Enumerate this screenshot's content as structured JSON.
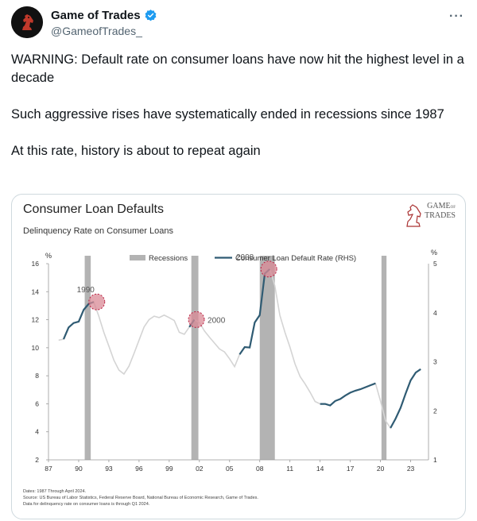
{
  "tweet": {
    "display_name": "Game of Trades",
    "handle": "@GameofTrades_",
    "more_icon": "more-horizontal-icon",
    "verified_icon": "verified-badge-icon",
    "paragraphs": [
      "WARNING: Default rate on consumer loans have now hit the highest level in a decade",
      "Such aggressive rises have systematically ended in recessions since 1987",
      "At this rate, history is about to repeat again"
    ]
  },
  "chart": {
    "brand_line1": "GAME",
    "brand_of": "OF",
    "brand_line2": "TRADES",
    "footnote_dates": "Dates: 1987 Through April 2024.",
    "footnote_source": "Source: US Bureau of Labor Statistics, Federal Reserve Board, National Bureau of Economic Research, Game of Trades.",
    "footnote_data": "Data for delinquency rate on consumer loans is through Q1 2024."
  },
  "chart_data": {
    "type": "line",
    "title": "Consumer Loan Defaults",
    "subtitle": "Delinquency Rate on Consumer Loans",
    "left_axis_unit": "%",
    "right_axis_unit": "%",
    "left_ylim": [
      2,
      16
    ],
    "right_ylim": [
      1,
      5
    ],
    "left_ticks": [
      2,
      4,
      6,
      8,
      10,
      12,
      14,
      16
    ],
    "right_ticks": [
      1,
      2,
      3,
      4,
      5
    ],
    "x_tick_labels": [
      "87",
      "90",
      "93",
      "96",
      "99",
      "02",
      "05",
      "08",
      "11",
      "14",
      "17",
      "20",
      "23"
    ],
    "x_tick_years": [
      1987,
      1990,
      1993,
      1996,
      1999,
      2002,
      2005,
      2008,
      2011,
      2014,
      2017,
      2020,
      2023
    ],
    "xlim": [
      1987,
      2024.3
    ],
    "legend": {
      "recessions_label": "Recessions",
      "series_label": "Consumer Loan Default Rate (RHS)"
    },
    "legend_placement": "top-center",
    "recessions": [
      [
        1990.6,
        1991.2
      ],
      [
        2001.2,
        2001.9
      ],
      [
        2008.0,
        2009.5
      ],
      [
        2020.1,
        2020.6
      ]
    ],
    "series": [
      {
        "name": "Consumer Loan Default Rate (RHS)",
        "axis": "right",
        "color": "#2f5b73",
        "points": [
          [
            1988.0,
            3.44
          ],
          [
            1988.5,
            3.46
          ],
          [
            1989.0,
            3.7
          ],
          [
            1989.5,
            3.79
          ],
          [
            1990.0,
            3.82
          ],
          [
            1990.5,
            4.06
          ],
          [
            1991.0,
            4.18
          ],
          [
            1991.5,
            4.22
          ],
          [
            1992.0,
            3.93
          ],
          [
            1992.5,
            3.6
          ],
          [
            1993.0,
            3.32
          ],
          [
            1993.5,
            3.03
          ],
          [
            1994.0,
            2.83
          ],
          [
            1994.5,
            2.75
          ],
          [
            1995.0,
            2.91
          ],
          [
            1995.5,
            3.17
          ],
          [
            1996.0,
            3.44
          ],
          [
            1996.5,
            3.71
          ],
          [
            1997.0,
            3.86
          ],
          [
            1997.5,
            3.93
          ],
          [
            1998.0,
            3.9
          ],
          [
            1998.5,
            3.95
          ],
          [
            1999.0,
            3.9
          ],
          [
            1999.5,
            3.84
          ],
          [
            2000.0,
            3.6
          ],
          [
            2000.5,
            3.56
          ],
          [
            2001.0,
            3.71
          ],
          [
            2001.5,
            3.86
          ],
          [
            2002.0,
            3.8
          ],
          [
            2002.5,
            3.63
          ],
          [
            2003.0,
            3.5
          ],
          [
            2003.5,
            3.38
          ],
          [
            2004.0,
            3.26
          ],
          [
            2004.5,
            3.2
          ],
          [
            2005.0,
            3.06
          ],
          [
            2005.5,
            2.9
          ],
          [
            2006.0,
            3.15
          ],
          [
            2006.5,
            3.3
          ],
          [
            2007.0,
            3.29
          ],
          [
            2007.5,
            3.8
          ],
          [
            2008.0,
            3.95
          ],
          [
            2008.5,
            4.8
          ],
          [
            2009.0,
            4.89
          ],
          [
            2009.5,
            4.55
          ],
          [
            2010.0,
            3.95
          ],
          [
            2010.5,
            3.6
          ],
          [
            2011.0,
            3.3
          ],
          [
            2011.5,
            2.96
          ],
          [
            2012.0,
            2.7
          ],
          [
            2012.5,
            2.55
          ],
          [
            2013.0,
            2.38
          ],
          [
            2013.5,
            2.19
          ],
          [
            2014.0,
            2.14
          ],
          [
            2014.5,
            2.14
          ],
          [
            2015.0,
            2.11
          ],
          [
            2015.5,
            2.2
          ],
          [
            2016.0,
            2.24
          ],
          [
            2016.5,
            2.31
          ],
          [
            2017.0,
            2.37
          ],
          [
            2017.5,
            2.41
          ],
          [
            2018.0,
            2.44
          ],
          [
            2018.5,
            2.48
          ],
          [
            2019.0,
            2.52
          ],
          [
            2019.5,
            2.56
          ],
          [
            2020.0,
            2.2
          ],
          [
            2020.5,
            1.8
          ],
          [
            2021.0,
            1.65
          ],
          [
            2021.5,
            1.84
          ],
          [
            2022.0,
            2.06
          ],
          [
            2022.5,
            2.35
          ],
          [
            2023.0,
            2.62
          ],
          [
            2023.5,
            2.78
          ],
          [
            2024.0,
            2.85
          ]
        ]
      }
    ],
    "highlights": [
      {
        "year": 1991.8,
        "value": 4.22,
        "label": "1990"
      },
      {
        "year": 2001.7,
        "value": 3.86,
        "label": "2000"
      },
      {
        "year": 2008.9,
        "value": 4.89,
        "label": "2008"
      }
    ],
    "colors": {
      "recession": "#b3b3b3",
      "series": "#2f5b73",
      "background_line": "#d4d4d4",
      "highlight": "#d98a96"
    }
  }
}
